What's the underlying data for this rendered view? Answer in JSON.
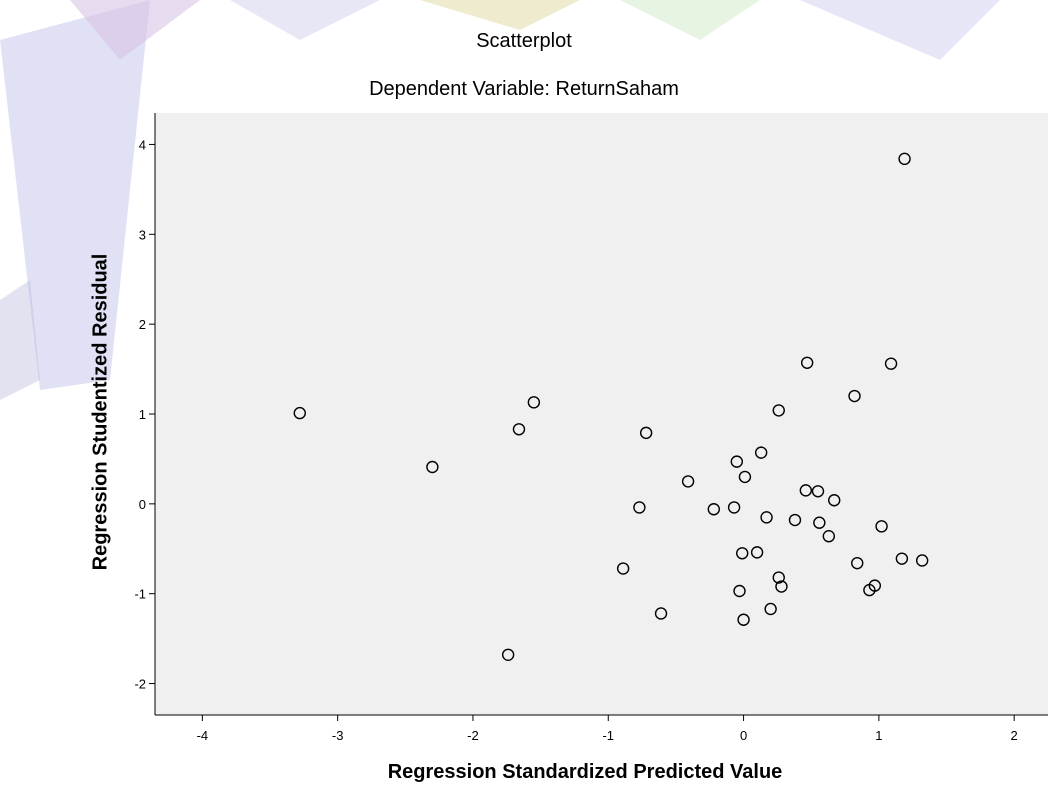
{
  "chart_data": {
    "type": "scatter",
    "title": "Scatterplot",
    "subtitle": "Dependent Variable: ReturnSaham",
    "xlabel": "Regression Standardized Predicted Value",
    "ylabel": "Regression Studentized Residual",
    "xlim": [
      -4.35,
      2.25
    ],
    "ylim": [
      -2.35,
      4.35
    ],
    "xticks": [
      -4,
      -3,
      -2,
      -1,
      0,
      1,
      2
    ],
    "yticks": [
      -2,
      -1,
      0,
      1,
      2,
      3,
      4
    ],
    "grid": false,
    "plot_background": "#f0f0f0",
    "marker_color": "#000000",
    "marker": "hollow-circle",
    "points": [
      {
        "x": -3.28,
        "y": 1.01
      },
      {
        "x": -2.3,
        "y": 0.41
      },
      {
        "x": -1.74,
        "y": -1.68
      },
      {
        "x": -1.66,
        "y": 0.83
      },
      {
        "x": -1.55,
        "y": 1.13
      },
      {
        "x": -0.89,
        "y": -0.72
      },
      {
        "x": -0.77,
        "y": -0.04
      },
      {
        "x": -0.72,
        "y": 0.79
      },
      {
        "x": -0.61,
        "y": -1.22
      },
      {
        "x": -0.41,
        "y": 0.25
      },
      {
        "x": -0.22,
        "y": -0.06
      },
      {
        "x": -0.07,
        "y": -0.04
      },
      {
        "x": -0.05,
        "y": 0.47
      },
      {
        "x": -0.03,
        "y": -0.97
      },
      {
        "x": -0.01,
        "y": -0.55
      },
      {
        "x": 0.0,
        "y": -1.29
      },
      {
        "x": 0.01,
        "y": 0.3
      },
      {
        "x": 0.1,
        "y": -0.54
      },
      {
        "x": 0.13,
        "y": 0.57
      },
      {
        "x": 0.17,
        "y": -0.15
      },
      {
        "x": 0.2,
        "y": -1.17
      },
      {
        "x": 0.26,
        "y": 1.04
      },
      {
        "x": 0.26,
        "y": -0.82
      },
      {
        "x": 0.28,
        "y": -0.92
      },
      {
        "x": 0.38,
        "y": -0.18
      },
      {
        "x": 0.46,
        "y": 0.15
      },
      {
        "x": 0.47,
        "y": 1.57
      },
      {
        "x": 0.55,
        "y": 0.14
      },
      {
        "x": 0.56,
        "y": -0.21
      },
      {
        "x": 0.63,
        "y": -0.36
      },
      {
        "x": 0.67,
        "y": 0.04
      },
      {
        "x": 0.82,
        "y": 1.2
      },
      {
        "x": 0.84,
        "y": -0.66
      },
      {
        "x": 0.93,
        "y": -0.96
      },
      {
        "x": 0.97,
        "y": -0.91
      },
      {
        "x": 1.02,
        "y": -0.25
      },
      {
        "x": 1.09,
        "y": 1.56
      },
      {
        "x": 1.17,
        "y": -0.61
      },
      {
        "x": 1.19,
        "y": 3.84
      },
      {
        "x": 1.32,
        "y": -0.63
      }
    ]
  }
}
